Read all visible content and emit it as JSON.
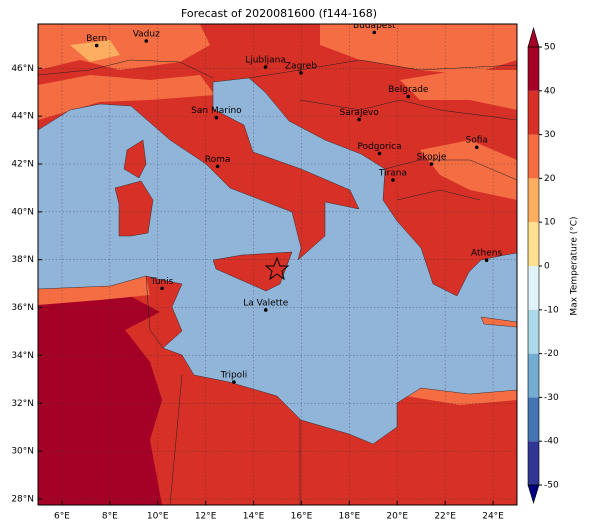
{
  "map": {
    "title": "Forecast of 2020081600 (f144-168)",
    "lon_range": [
      5,
      25
    ],
    "lat_range": [
      27.75,
      47.85
    ],
    "lon_ticks": [
      {
        "value": 6,
        "label": "6°E"
      },
      {
        "value": 8,
        "label": "8°E"
      },
      {
        "value": 10,
        "label": "10°E"
      },
      {
        "value": 12,
        "label": "12°E"
      },
      {
        "value": 14,
        "label": "14°E"
      },
      {
        "value": 16,
        "label": "16°E"
      },
      {
        "value": 18,
        "label": "18°E"
      },
      {
        "value": 20,
        "label": "20°E"
      },
      {
        "value": 22,
        "label": "22°E"
      },
      {
        "value": 24,
        "label": "24°E"
      }
    ],
    "lat_ticks": [
      {
        "value": 28,
        "label": "28°N"
      },
      {
        "value": 30,
        "label": "30°N"
      },
      {
        "value": 32,
        "label": "32°N"
      },
      {
        "value": 34,
        "label": "34°N"
      },
      {
        "value": 36,
        "label": "36°N"
      },
      {
        "value": 38,
        "label": "38°N"
      },
      {
        "value": 40,
        "label": "40°N"
      },
      {
        "value": 42,
        "label": "42°N"
      },
      {
        "value": 44,
        "label": "44°N"
      },
      {
        "value": 46,
        "label": "46°N"
      }
    ],
    "cities": [
      {
        "name": "Bern",
        "lon": 7.45,
        "lat": 46.95
      },
      {
        "name": "Vaduz",
        "lon": 9.52,
        "lat": 47.14
      },
      {
        "name": "Budapest",
        "lon": 19.04,
        "lat": 47.5
      },
      {
        "name": "Ljubljana",
        "lon": 14.5,
        "lat": 46.05
      },
      {
        "name": "Zagreb",
        "lon": 15.98,
        "lat": 45.81
      },
      {
        "name": "Belgrade",
        "lon": 20.46,
        "lat": 44.82
      },
      {
        "name": "San Marino",
        "lon": 12.45,
        "lat": 43.94
      },
      {
        "name": "Sarajevo",
        "lon": 18.41,
        "lat": 43.86
      },
      {
        "name": "Sofia",
        "lon": 23.32,
        "lat": 42.7
      },
      {
        "name": "Podgorica",
        "lon": 19.26,
        "lat": 42.44
      },
      {
        "name": "Skopje",
        "lon": 21.43,
        "lat": 42.0
      },
      {
        "name": "Roma",
        "lon": 12.5,
        "lat": 41.9
      },
      {
        "name": "Tirana",
        "lon": 19.82,
        "lat": 41.33
      },
      {
        "name": "Athens",
        "lon": 23.73,
        "lat": 37.98
      },
      {
        "name": "Tunis",
        "lon": 10.18,
        "lat": 36.8
      },
      {
        "name": "La Valette",
        "lon": 14.51,
        "lat": 35.9
      },
      {
        "name": "Tripoli",
        "lon": 13.18,
        "lat": 32.89
      }
    ],
    "colorbar": {
      "label": "Max Temperature (°C)",
      "ticks": [
        -50,
        -40,
        -30,
        -20,
        -10,
        0,
        10,
        20,
        30,
        40,
        50
      ],
      "colors": [
        "#313695",
        "#4575b4",
        "#74add1",
        "#abd9e9",
        "#e0f3f8",
        "#fee090",
        "#fdae61",
        "#f46d43",
        "#d73027",
        "#a50026"
      ]
    }
  }
}
